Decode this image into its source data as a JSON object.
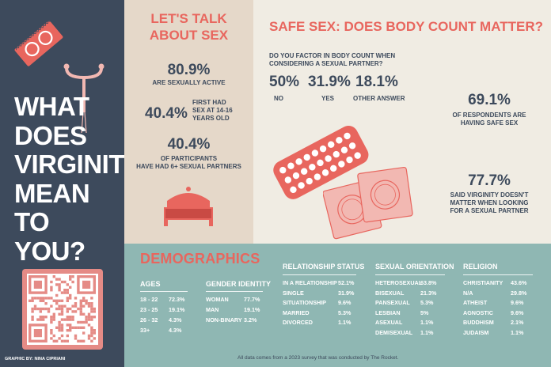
{
  "left": {
    "title_lines": [
      "WHAT",
      "DOES",
      "VIRGINITY",
      "MEAN TO",
      "YOU?"
    ],
    "credit": "GRAPHIC BY: NINA CIPRIANI"
  },
  "talk": {
    "title_lines": [
      "LET'S TALK",
      "ABOUT SEX"
    ],
    "stat1": {
      "value": "80.9%",
      "label": "ARE SEXUALLY ACTIVE"
    },
    "stat2": {
      "value": "40.4%",
      "label_lines": [
        "FIRST HAD",
        "SEX AT 14-16",
        "YEARS OLD"
      ]
    },
    "stat3": {
      "value": "40.4%",
      "label_lines": [
        "OF PARTICIPANTS",
        "HAVE HAD 6+ SEXUAL PARTNERS"
      ]
    }
  },
  "safe": {
    "title": "SAFE SEX: DOES BODY COUNT MATTER?",
    "question_lines": [
      "DO YOU FACTOR IN BODY COUNT WHEN",
      "CONSIDERING A SEXUAL PARTNER?"
    ],
    "answers": [
      {
        "value": "50%",
        "label": "NO"
      },
      {
        "value": "31.9%",
        "label": "YES"
      },
      {
        "value": "18.1%",
        "label": "OTHER ANSWER"
      }
    ],
    "stat_safe": {
      "value": "69.1%",
      "label_lines": [
        "OF RESPONDENTS ARE",
        "HAVING SAFE SEX"
      ]
    },
    "stat_virginity": {
      "value": "77.7%",
      "label_lines": [
        "SAID VIRGINITY DOESN'T",
        "MATTER WHEN LOOKING",
        "FOR A SEXUAL PARTNER"
      ]
    }
  },
  "demographics": {
    "title": "DEMOGRAPHICS",
    "ages": {
      "heading": "AGES",
      "rows": [
        {
          "label": "18 - 22",
          "pct": "72.3%"
        },
        {
          "label": "23 - 25",
          "pct": "19.1%"
        },
        {
          "label": "26 - 32",
          "pct": "4.3%"
        },
        {
          "label": "33+",
          "pct": "4.3%"
        }
      ]
    },
    "gender": {
      "heading": "GENDER IDENTITY",
      "rows": [
        {
          "label": "WOMAN",
          "pct": "77.7%"
        },
        {
          "label": "MAN",
          "pct": "19.1%"
        },
        {
          "label": "NON-BINARY",
          "pct": "3.2%"
        }
      ]
    },
    "relationship": {
      "heading": "RELATIONSHIP STATUS",
      "rows": [
        {
          "label": "IN A RELATIONSHIP",
          "pct": "52.1%"
        },
        {
          "label": "SINGLE",
          "pct": "31.9%"
        },
        {
          "label": "SITUATIONSHIP",
          "pct": "9.6%"
        },
        {
          "label": "MARRIED",
          "pct": "5.3%"
        },
        {
          "label": "DIVORCED",
          "pct": "1.1%"
        }
      ]
    },
    "orientation": {
      "heading": "SEXUAL ORIENTATION",
      "rows": [
        {
          "label": "HETEROSEXUAL",
          "pct": "63.8%"
        },
        {
          "label": "BISEXUAL",
          "pct": "21.3%"
        },
        {
          "label": "PANSEXUAL",
          "pct": "5.3%"
        },
        {
          "label": "LESBIAN",
          "pct": "5%"
        },
        {
          "label": "ASEXUAL",
          "pct": "1.1%"
        },
        {
          "label": "DEMISEXUAL",
          "pct": "1.1%"
        }
      ]
    },
    "religion": {
      "heading": "RELIGION",
      "rows": [
        {
          "label": "CHRISTIANITY",
          "pct": "43.6%"
        },
        {
          "label": "N/A",
          "pct": "29.8%"
        },
        {
          "label": "ATHEIST",
          "pct": "9.6%"
        },
        {
          "label": "AGNOSTIC",
          "pct": "9.6%"
        },
        {
          "label": "BUDDHISM",
          "pct": "2.1%"
        },
        {
          "label": "JUDAISM",
          "pct": "1.1%"
        }
      ]
    },
    "footnote": "All data comes from a 2023 survey that was conducted by The Rocket."
  },
  "colors": {
    "navy": "#3d4a5c",
    "coral": "#e8665e",
    "teal": "#8fb7b3",
    "beige": "#e5d8c9",
    "cream": "#f0ece3",
    "pink": "#f2b8b2"
  },
  "icons": [
    "condom-wrapper-icon",
    "iud-icon",
    "bed-icon",
    "pill-pack-icon",
    "condom-packets-icon",
    "qr-code-icon"
  ]
}
